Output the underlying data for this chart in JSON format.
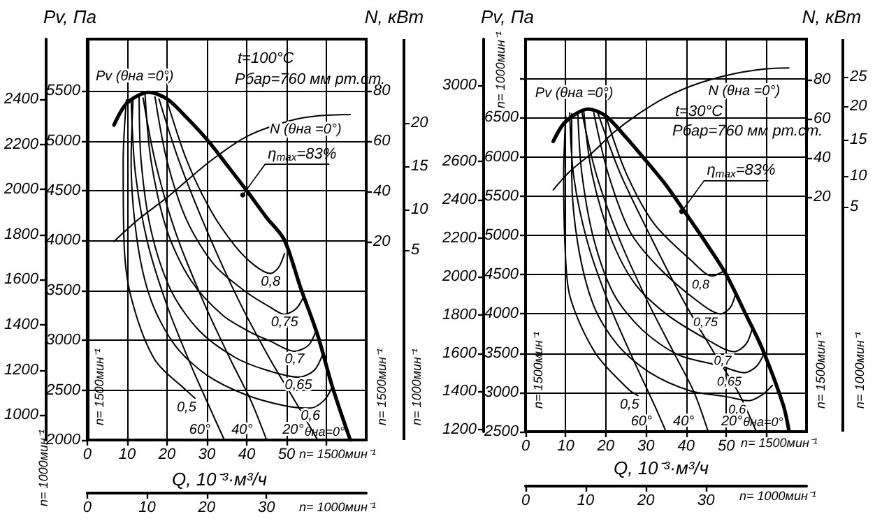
{
  "chart_data": [
    {
      "type": "line",
      "xlabel": "Q, 10⁻³·м³/ч",
      "ylabel": "Pv, Па",
      "y3label": "N, кВт",
      "grid": true,
      "xlim": [
        0,
        70
      ],
      "xticks": [
        0,
        10,
        20,
        30,
        40,
        50,
        {
          "value": 60,
          "label": null
        }
      ],
      "x2lim": [
        0,
        46.7
      ],
      "x2ticks": [
        0,
        10,
        20,
        30
      ],
      "ylim": [
        2000,
        6020
      ],
      "yticks": [
        2000,
        2500,
        3000,
        3500,
        4000,
        4500,
        5000,
        5500
      ],
      "y2lim": [
        889,
        2666
      ],
      "y2ticks": [
        1000,
        1200,
        1400,
        1600,
        1800,
        2000,
        2200,
        2400
      ],
      "y3lim": [
        -59,
        100.5
      ],
      "y3ticks": [
        20,
        40,
        60,
        80
      ],
      "annotations": [
        "t=100°C",
        "Pбар=760 мм рт.ст.",
        {
          "text": "η$_{max}$=83%",
          "x": 39,
          "y": 4457
        },
        {
          "text": "θна=0°",
          "x": 66,
          "y": 2000
        },
        "n= 1500мин⁻¹",
        "n= 1000мин⁻¹",
        "n= 1500мин⁻¹",
        "n= 1000мин⁻¹",
        "n= 1500мин⁻¹",
        "n= 1000мин⁻¹",
        "5",
        "10",
        "15",
        "20"
      ],
      "series": [
        {
          "name": "Pv (θна =0°)",
          "color": "#000000",
          "x": [
            6.7,
            10,
            15.4,
            20,
            25,
            30.2,
            35,
            40.3,
            45,
            49.4,
            53.5,
            57.8,
            61.5,
            66
          ],
          "values": [
            5159,
            5380,
            5486,
            5420,
            5230,
            5005,
            4760,
            4485,
            4230,
            4010,
            3530,
            3053,
            2534,
            2000
          ]
        },
        {
          "name": "N (θна =0°)",
          "color": "#000000",
          "axis": "y3",
          "x": [
            6.7,
            13,
            20.4,
            30.9,
            40.3,
            50.8,
            58,
            66
          ],
          "values": [
            20,
            29,
            38,
            52,
            62,
            68,
            70,
            70.5
          ]
        },
        {
          "name": "0,8",
          "color": "#000000",
          "x": [
            20,
            25,
            31,
            37,
            42,
            46,
            48,
            49.5
          ],
          "values": [
            5400,
            4800,
            4300,
            3950,
            3750,
            3670,
            3730,
            3870
          ]
        },
        {
          "name": "0,75",
          "color": "#000000",
          "x": [
            17,
            20,
            25,
            32,
            40,
            46,
            49.5,
            52.5,
            54.4
          ],
          "values": [
            5440,
            4800,
            4200,
            3750,
            3480,
            3330,
            3260,
            3320,
            3446
          ]
        },
        {
          "name": "0,7",
          "color": "#000000",
          "x": [
            14.5,
            16,
            20,
            26,
            34,
            41,
            46,
            52,
            55.5,
            57.5
          ],
          "values": [
            5460,
            4800,
            4100,
            3600,
            3250,
            3080,
            2990,
            2890,
            2950,
            3100
          ]
        },
        {
          "name": "0,65",
          "color": "#000000",
          "x": [
            13,
            13.5,
            16,
            21,
            28,
            37,
            45,
            53,
            57,
            59.3
          ],
          "values": [
            5450,
            4800,
            4100,
            3500,
            3100,
            2830,
            2700,
            2630,
            2700,
            2885
          ]
        },
        {
          "name": "0,6",
          "color": "#000000",
          "x": [
            11.5,
            11,
            12.5,
            16,
            22,
            30,
            40,
            50,
            56,
            59.5,
            61.5
          ],
          "values": [
            5440,
            4800,
            4000,
            3400,
            2950,
            2650,
            2450,
            2340,
            2320,
            2400,
            2534
          ]
        },
        {
          "name": "0,5",
          "color": "#000000",
          "x": [
            9.8,
            9,
            9.2,
            10.9,
            16.8,
            25,
            27
          ],
          "values": [
            5410,
            4800,
            4000,
            3446,
            2814,
            2491,
            2420
          ]
        },
        {
          "name": "60°",
          "color": "#000000",
          "x": [
            11,
            12,
            15,
            20,
            26,
            31,
            34.4
          ],
          "values": [
            5420,
            4700,
            4000,
            3350,
            2750,
            2300,
            2000
          ]
        },
        {
          "name": "40°",
          "color": "#000000",
          "x": [
            14,
            17,
            22,
            29,
            36,
            41,
            45
          ],
          "values": [
            5430,
            4800,
            4100,
            3400,
            2800,
            2400,
            2000
          ]
        },
        {
          "name": "20°",
          "color": "#000000",
          "x": [
            18,
            23,
            30,
            38,
            46,
            52,
            57.8
          ],
          "values": [
            5420,
            4800,
            4100,
            3400,
            2800,
            2400,
            2000
          ]
        }
      ]
    },
    {
      "type": "line",
      "xlabel": "Q, 10⁻³·м³/ч",
      "ylabel": "Pv, Па",
      "y3label": "N, кВт",
      "grid": true,
      "xlim": [
        0,
        70
      ],
      "xticks": [
        0,
        10,
        20,
        30,
        40,
        50,
        {
          "value": 60,
          "label": null
        }
      ],
      "x2lim": [
        0,
        46.7
      ],
      "x2ticks": [
        0,
        10,
        20,
        30
      ],
      "ylim": [
        2500,
        7500
      ],
      "yticks": [
        2500,
        3000,
        3500,
        4000,
        4500,
        5000,
        5500,
        6000,
        6500,
        {
          "value": 7000,
          "label": null
        }
      ],
      "y2lim": [
        1190,
        3240
      ],
      "y2ticks": [
        1200,
        1400,
        1600,
        1800,
        2000,
        2200,
        2400,
        2600,
        3000
      ],
      "y3lim": [
        -100,
        100.7
      ],
      "y3ticks": [
        20,
        40,
        60,
        80
      ],
      "annotations": [
        "t=30°C",
        "Pбар=760 мм рт.ст.",
        {
          "text": "η$_{max}$=83%",
          "x": 38.9,
          "y": 5304
        },
        {
          "text": "θна=0°",
          "x": 65.6,
          "y": 2518
        },
        "n= 1500мин⁻¹",
        "n= 1000мин⁻¹",
        "n= 1500мин⁻¹",
        "n= 1000мин⁻¹",
        "n= 1500мин⁻¹",
        "n= 1000мин⁻¹",
        "5",
        "10",
        "15",
        "20",
        "25"
      ],
      "series": [
        {
          "name": "Pv (θна =0°)",
          "color": "#000000",
          "x": [
            6.9,
            10,
            15.6,
            20,
            25,
            29.2,
            35,
            39.6,
            45,
            50,
            55,
            59,
            64.2,
            65.6
          ],
          "values": [
            6197,
            6450,
            6608,
            6520,
            6250,
            6000,
            5640,
            5304,
            4900,
            4500,
            3980,
            3554,
            2840,
            2518
          ]
        },
        {
          "name": "N (θна =0°)",
          "color": "#000000",
          "axis": "y3",
          "x": [
            6.9,
            11,
            16.3,
            22,
            27.8,
            35,
            43,
            52,
            60,
            65.6
          ],
          "values": [
            23.6,
            33,
            42,
            53,
            62,
            71,
            78,
            83,
            85.5,
            86
          ]
        },
        {
          "name": "0,8",
          "color": "#000000",
          "x": [
            20,
            25,
            32,
            41.3,
            46.5,
            48.5,
            49.5
          ],
          "values": [
            6520,
            5800,
            5150,
            4679,
            4482,
            4520,
            4550
          ]
        },
        {
          "name": "0,75",
          "color": "#000000",
          "x": [
            17,
            20.5,
            26,
            33,
            42.4,
            48.6,
            51,
            52.3
          ],
          "values": [
            6560,
            5800,
            5050,
            4600,
            4179,
            4000,
            4080,
            4250
          ]
        },
        {
          "name": "0,7",
          "color": "#000000",
          "x": [
            14.5,
            16.5,
            21,
            27,
            35,
            45,
            52,
            55,
            56.5
          ],
          "values": [
            6580,
            5800,
            5000,
            4400,
            4000,
            3679,
            3518,
            3620,
            3820
          ]
        },
        {
          "name": "0,65",
          "color": "#000000",
          "x": [
            13,
            14,
            17,
            22,
            29,
            38,
            48.3,
            54.5,
            57.5,
            59.5
          ],
          "values": [
            6570,
            5800,
            4950,
            4250,
            3800,
            3480,
            3340,
            3250,
            3330,
            3500
          ]
        },
        {
          "name": "0,6",
          "color": "#000000",
          "x": [
            11.5,
            11.5,
            13,
            17,
            23,
            31,
            41,
            50,
            55.6,
            59,
            61.5
          ],
          "values": [
            6550,
            5800,
            4900,
            4100,
            3600,
            3250,
            3020,
            2946,
            2893,
            2970,
            3089
          ]
        },
        {
          "name": "0,5",
          "color": "#000000",
          "x": [
            10,
            9.5,
            9.8,
            11.1,
            17.4,
            25.7,
            28
          ],
          "values": [
            6520,
            5800,
            4900,
            4214,
            3500,
            3036,
            2960
          ]
        },
        {
          "name": "60°",
          "color": "#000000",
          "x": [
            11,
            12,
            15.5,
            21,
            27,
            32,
            35
          ],
          "values": [
            6560,
            5750,
            4900,
            4100,
            3400,
            2850,
            2500
          ]
        },
        {
          "name": "40°",
          "color": "#000000",
          "x": [
            14,
            17.5,
            23,
            30,
            37,
            42,
            45.5
          ],
          "values": [
            6580,
            5800,
            5000,
            4200,
            3500,
            3000,
            2500
          ]
        },
        {
          "name": "20°",
          "color": "#000000",
          "x": [
            18,
            23.5,
            31,
            39,
            47,
            53,
            57.5
          ],
          "values": [
            6560,
            5800,
            5000,
            4200,
            3500,
            3000,
            2500
          ]
        }
      ]
    }
  ]
}
